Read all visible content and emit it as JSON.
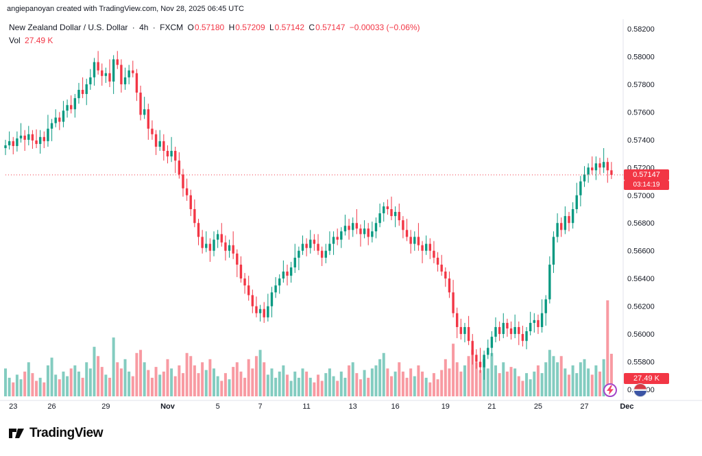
{
  "header": {
    "credit": "angiepanoyan created with TradingView.com, Nov 28, 2025 06:45 UTC"
  },
  "footer": {
    "logo_text": "TradingView"
  },
  "icons": {
    "lightning": "lightning-icon",
    "flag": "flag-icon"
  },
  "chart_data": {
    "type": "candlestick",
    "title": "New Zealand Dollar / U.S. Dollar",
    "interval": "4h",
    "exchange": "FXCM",
    "sep": "·",
    "legend": {
      "o_label": "O",
      "o": "0.57180",
      "h_label": "H",
      "h": "0.57209",
      "l_label": "L",
      "l": "0.57142",
      "c_label": "C",
      "c": "0.57147",
      "change": "−0.00033 (−0.06%)",
      "vol_label": "Vol",
      "vol": "27.49 K"
    },
    "badges": {
      "price": "0.57147",
      "countdown": "03:14:19",
      "volume": "27.49 K"
    },
    "last_price": 0.57147,
    "colors": {
      "up": "#089981",
      "down": "#F23645",
      "vol_up": "rgba(8,153,129,0.5)",
      "vol_dn": "rgba(242,54,69,0.5)",
      "line": "#F23645",
      "axis_text": "#131722",
      "separator": "#E0E3EB"
    },
    "y_axis": {
      "max_price": 0.582,
      "min_price": 0.556,
      "ticks": [
        "0.58200",
        "0.58000",
        "0.57800",
        "0.57600",
        "0.57400",
        "0.57200",
        "0.57000",
        "0.56800",
        "0.56600",
        "0.56400",
        "0.56200",
        "0.56000",
        "0.55800",
        "0.55600"
      ]
    },
    "x_axis": {
      "labels": [
        {
          "text": "23",
          "idx": 2
        },
        {
          "text": "26",
          "idx": 12
        },
        {
          "text": "29",
          "idx": 26
        },
        {
          "text": "Nov",
          "idx": 42,
          "bold": true
        },
        {
          "text": "5",
          "idx": 55
        },
        {
          "text": "7",
          "idx": 66
        },
        {
          "text": "11",
          "idx": 78
        },
        {
          "text": "13",
          "idx": 90
        },
        {
          "text": "16",
          "idx": 101
        },
        {
          "text": "19",
          "idx": 114
        },
        {
          "text": "21",
          "idx": 126
        },
        {
          "text": "25",
          "idx": 138
        },
        {
          "text": "27",
          "idx": 150
        },
        {
          "text": "Dec",
          "idx": 161,
          "bold": true
        }
      ]
    },
    "first_open": 0.5734,
    "closes": [
      0.5736,
      0.5739,
      0.57355,
      0.5741,
      0.5743,
      0.574,
      0.5744,
      0.57395,
      0.5737,
      0.5742,
      0.5739,
      0.5748,
      0.5752,
      0.5756,
      0.5753,
      0.5761,
      0.5765,
      0.5762,
      0.577,
      0.5776,
      0.5773,
      0.578,
      0.5785,
      0.5796,
      0.579,
      0.5786,
      0.5788,
      0.5782,
      0.5798,
      0.5794,
      0.578,
      0.5785,
      0.579,
      0.5788,
      0.5774,
      0.5758,
      0.5762,
      0.5748,
      0.5744,
      0.5735,
      0.5739,
      0.5732,
      0.5728,
      0.5732,
      0.5725,
      0.5715,
      0.5705,
      0.57,
      0.569,
      0.568,
      0.567,
      0.5662,
      0.5665,
      0.566,
      0.5668,
      0.5672,
      0.5666,
      0.566,
      0.5664,
      0.5658,
      0.565,
      0.564,
      0.5635,
      0.5628,
      0.562,
      0.5615,
      0.5618,
      0.5612,
      0.562,
      0.563,
      0.5635,
      0.564,
      0.5645,
      0.5642,
      0.5648,
      0.5655,
      0.566,
      0.5665,
      0.5662,
      0.5668,
      0.5665,
      0.566,
      0.5655,
      0.566,
      0.5665,
      0.567,
      0.5668,
      0.5674,
      0.5678,
      0.5675,
      0.568,
      0.5676,
      0.5672,
      0.5676,
      0.567,
      0.5674,
      0.568,
      0.5687,
      0.5692,
      0.569,
      0.5685,
      0.5688,
      0.5682,
      0.5675,
      0.567,
      0.5665,
      0.567,
      0.5664,
      0.566,
      0.5665,
      0.566,
      0.5655,
      0.565,
      0.5645,
      0.564,
      0.563,
      0.5615,
      0.5605,
      0.56,
      0.5605,
      0.5595,
      0.5585,
      0.558,
      0.5576,
      0.5585,
      0.559,
      0.5598,
      0.5605,
      0.56,
      0.5608,
      0.5604,
      0.56,
      0.5605,
      0.56,
      0.5595,
      0.5602,
      0.5608,
      0.561,
      0.5605,
      0.5615,
      0.5625,
      0.565,
      0.567,
      0.568,
      0.5675,
      0.5685,
      0.568,
      0.569,
      0.57,
      0.571,
      0.5715,
      0.572,
      0.5718,
      0.5723,
      0.572,
      0.5724,
      0.5718,
      0.57147
    ],
    "volumes": [
      18,
      12,
      9,
      14,
      11,
      16,
      22,
      15,
      10,
      12,
      9,
      20,
      25,
      14,
      11,
      16,
      13,
      18,
      20,
      16,
      12,
      22,
      18,
      32,
      26,
      19,
      14,
      12,
      38,
      22,
      18,
      24,
      16,
      13,
      28,
      30,
      22,
      17,
      12,
      19,
      14,
      16,
      24,
      18,
      13,
      20,
      15,
      28,
      26,
      20,
      15,
      22,
      17,
      24,
      18,
      13,
      10,
      15,
      11,
      19,
      22,
      16,
      12,
      24,
      18,
      26,
      30,
      22,
      14,
      18,
      12,
      16,
      20,
      14,
      10,
      16,
      12,
      18,
      16,
      12,
      9,
      14,
      10,
      15,
      18,
      13,
      10,
      16,
      12,
      20,
      22,
      15,
      11,
      17,
      12,
      18,
      20,
      24,
      28,
      18,
      13,
      16,
      22,
      16,
      12,
      18,
      13,
      20,
      16,
      12,
      9,
      15,
      11,
      17,
      24,
      18,
      34,
      22,
      16,
      20,
      26,
      30,
      22,
      17,
      24,
      18,
      28,
      20,
      15,
      22,
      16,
      19,
      18,
      13,
      10,
      15,
      11,
      16,
      20,
      15,
      22,
      30,
      26,
      22,
      26,
      18,
      14,
      20,
      15,
      22,
      24,
      18,
      14,
      20,
      16,
      24,
      62,
      27.49
    ],
    "wick_up_pattern": [
      0.0004,
      0.0007,
      0.0003,
      0.0005,
      0.0009,
      0.0004,
      0.0006,
      0.0003,
      0.0008,
      0.0005,
      0.0004,
      0.001,
      0.0003,
      0.0006,
      0.0004,
      0.0007
    ],
    "wick_dn_pattern": [
      0.0005,
      0.0003,
      0.0006,
      0.0004,
      0.0003,
      0.0008,
      0.0004,
      0.0006,
      0.0003,
      0.0007,
      0.0005,
      0.0004,
      0.0009,
      0.0003,
      0.0006,
      0.0004
    ]
  }
}
